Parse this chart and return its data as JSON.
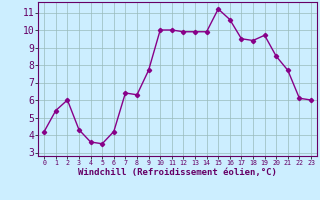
{
  "x": [
    0,
    1,
    2,
    3,
    4,
    5,
    6,
    7,
    8,
    9,
    10,
    11,
    12,
    13,
    14,
    15,
    16,
    17,
    18,
    19,
    20,
    21,
    22,
    23
  ],
  "y": [
    4.2,
    5.4,
    6.0,
    4.3,
    3.6,
    3.5,
    4.2,
    6.4,
    6.3,
    7.7,
    10.0,
    10.0,
    9.9,
    9.9,
    9.9,
    11.2,
    10.6,
    9.5,
    9.4,
    9.7,
    8.5,
    7.7,
    6.1,
    6.0
  ],
  "line_color": "#880088",
  "marker": "D",
  "markersize": 2.2,
  "linewidth": 1.0,
  "bg_color": "#cceeff",
  "grid_color": "#99bbbb",
  "xlabel": "Windchill (Refroidissement éolien,°C)",
  "xlabel_color": "#660066",
  "ylabel_ticks": [
    3,
    4,
    5,
    6,
    7,
    8,
    9,
    10,
    11
  ],
  "xtick_labels": [
    "0",
    "1",
    "2",
    "3",
    "4",
    "5",
    "6",
    "7",
    "8",
    "9",
    "10",
    "11",
    "12",
    "13",
    "14",
    "15",
    "16",
    "17",
    "18",
    "19",
    "20",
    "21",
    "22",
    "23"
  ],
  "ylim": [
    2.8,
    11.6
  ],
  "xlim": [
    -0.5,
    23.5
  ],
  "tick_color": "#660066",
  "spine_color": "#660066",
  "xlabel_fontsize": 6.5,
  "ytick_fontsize": 7,
  "xtick_fontsize": 4.8
}
